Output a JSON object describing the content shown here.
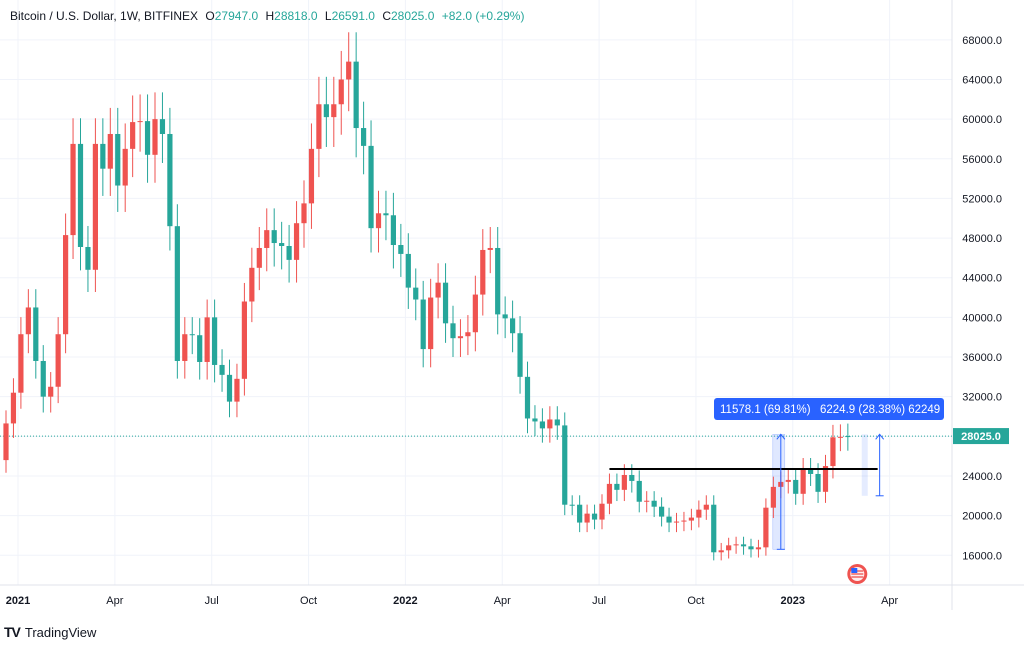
{
  "legend": {
    "symbol": "Bitcoin / U.S. Dollar, 1W, BITFINEX",
    "o_label": "O",
    "o": "27947.0",
    "h_label": "H",
    "h": "28818.0",
    "l_label": "L",
    "l": "26591.0",
    "c_label": "C",
    "c": "28025.0",
    "change": "+82.0 (+0.29%)"
  },
  "brand": {
    "logo": "TV",
    "name": "TradingView"
  },
  "colors": {
    "up": "#26a69a",
    "down": "#ef5350",
    "price_line": "#26a69a",
    "measure": "#2962ff",
    "highlight": "#2962ff"
  },
  "chart_data": {
    "type": "candlestick",
    "title": "",
    "y_ticks": [
      "16000.0",
      "20000.0",
      "24000.0",
      "28000.0",
      "32000.0",
      "36000.0",
      "40000.0",
      "44000.0",
      "48000.0",
      "52000.0",
      "56000.0",
      "60000.0",
      "64000.0",
      "68000.0"
    ],
    "y_tick_values": [
      16000,
      20000,
      24000,
      28000,
      32000,
      36000,
      40000,
      44000,
      48000,
      52000,
      56000,
      60000,
      64000,
      68000
    ],
    "x_ticks": [
      "2021",
      "Apr",
      "Jul",
      "Oct",
      "2022",
      "Apr",
      "Jul",
      "Oct",
      "2023",
      "Apr"
    ],
    "x_tick_week_index": [
      0,
      13,
      26,
      39,
      52,
      65,
      78,
      91,
      104,
      117
    ],
    "ylim": [
      13000,
      70000
    ],
    "current_price_label": "28025.0",
    "current_price": 28025,
    "resistance_level": 24700,
    "measure_1": {
      "label": "11578.1 (69.81%)",
      "from": 16600,
      "to": 28200
    },
    "measure_2": {
      "label": "6224.9 (28.38%) 62249",
      "from": 22000,
      "to": 28200
    },
    "candles_close": [
      25600,
      29300,
      32400,
      38300,
      41000,
      35600,
      32000,
      33000,
      38300,
      48300,
      57500,
      47100,
      44800,
      57500,
      55000,
      58500,
      53300,
      57000,
      59700,
      59800,
      56400,
      60000,
      58500,
      49200,
      35600,
      38300,
      38200,
      35500,
      40000,
      35200,
      34200,
      31500,
      33800,
      41600,
      45000,
      47000,
      48800,
      47500,
      47200,
      45800,
      49500,
      51500,
      57000,
      61500,
      60200,
      61500,
      64000,
      65800,
      59100,
      57300,
      49000,
      50500,
      50300,
      47300,
      46400,
      43000,
      41800,
      36800,
      42000,
      43500,
      39400,
      37900,
      38100,
      38500,
      42300,
      46800,
      47000,
      40300,
      39900,
      38400,
      34000,
      29800,
      29500,
      28800,
      29700,
      29100,
      21100,
      21100,
      19300,
      20200,
      19600,
      21200,
      23200,
      22600,
      24100,
      23500,
      21400,
      21500,
      20900,
      19900,
      19300,
      19400,
      19500,
      19800,
      20600,
      21100,
      16300,
      16500,
      17000,
      17100,
      16900,
      16600,
      16800,
      20800,
      22900,
      23400,
      23600,
      22200,
      24700,
      24200,
      22400,
      25000,
      27900,
      28025
    ],
    "candles_open": [
      29300,
      32400,
      38300,
      41000,
      35600,
      32000,
      33000,
      38300,
      48300,
      57500,
      47100,
      44800,
      57500,
      55000,
      58500,
      53300,
      57000,
      59700,
      59800,
      56400,
      60000,
      58500,
      49200,
      35600,
      38300,
      38200,
      35500,
      40000,
      35200,
      34200,
      31500,
      33800,
      41600,
      45000,
      47000,
      48800,
      47500,
      47200,
      45800,
      49500,
      51500,
      57000,
      61500,
      60200,
      61500,
      64000,
      65800,
      59100,
      57300,
      49000,
      50500,
      50300,
      47300,
      46400,
      43000,
      41800,
      36800,
      42000,
      43500,
      39400,
      37900,
      38100,
      38500,
      42300,
      46800,
      47000,
      40300,
      39900,
      38400,
      34000,
      29800,
      29500,
      28800,
      29700,
      29100,
      21100,
      21100,
      19300,
      20200,
      19600,
      21200,
      23200,
      22600,
      24100,
      23500,
      21400,
      21500,
      20900,
      19900,
      19300,
      19400,
      19500,
      19800,
      20600,
      21100,
      16300,
      16500,
      17000,
      17100,
      16900,
      16600,
      16800,
      20800,
      22900,
      23400,
      23600,
      22200,
      24700,
      24200,
      22400,
      25000,
      27900,
      27947,
      27947
    ]
  }
}
